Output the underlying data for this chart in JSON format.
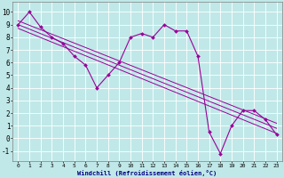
{
  "title": "",
  "xlabel": "Windchill (Refroidissement éolien,°C)",
  "bg_color": "#c0e8e8",
  "line_color": "#990099",
  "grid_color": "#ffffff",
  "xlim": [
    -0.5,
    23.5
  ],
  "ylim": [
    -1.8,
    10.8
  ],
  "xticks": [
    0,
    1,
    2,
    3,
    4,
    5,
    6,
    7,
    8,
    9,
    10,
    11,
    12,
    13,
    14,
    15,
    16,
    17,
    18,
    19,
    20,
    21,
    22,
    23
  ],
  "yticks": [
    -1,
    0,
    1,
    2,
    3,
    4,
    5,
    6,
    7,
    8,
    9,
    10
  ],
  "data_x": [
    0,
    1,
    2,
    3,
    4,
    5,
    6,
    7,
    8,
    9,
    10,
    11,
    12,
    13,
    14,
    15,
    16,
    17,
    18,
    19,
    20,
    21,
    22,
    23
  ],
  "data_y": [
    9.0,
    10.0,
    8.8,
    8.0,
    7.5,
    6.5,
    5.8,
    4.0,
    5.0,
    6.0,
    8.0,
    8.3,
    8.0,
    9.0,
    8.5,
    8.5,
    6.5,
    0.5,
    -1.2,
    1.0,
    2.2,
    2.2,
    1.5,
    0.3
  ],
  "trend1_x": [
    0,
    23
  ],
  "trend1_y": [
    9.3,
    1.2
  ],
  "trend2_x": [
    0,
    23
  ],
  "trend2_y": [
    9.0,
    0.8
  ],
  "trend3_x": [
    0,
    23
  ],
  "trend3_y": [
    8.7,
    0.4
  ]
}
